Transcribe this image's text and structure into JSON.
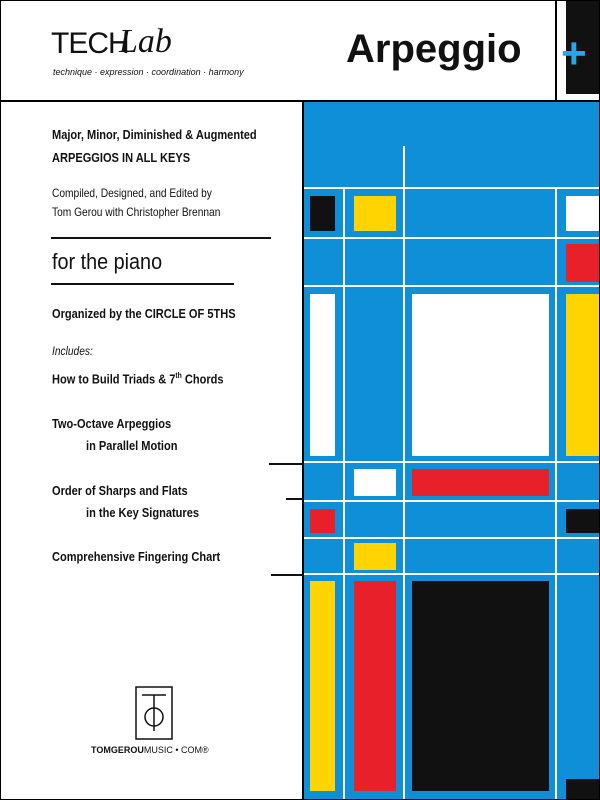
{
  "header": {
    "logo_tech": "TECH",
    "logo_lab": "Lab",
    "tagline": "technique · expression · coordination · harmony",
    "title": "Arpeggio",
    "plus": "+"
  },
  "left": {
    "subtitle": [
      "Major, Minor, Diminished & Augmented",
      "ARPEGGIOS IN ALL KEYS"
    ],
    "credits": [
      "Compiled, Designed, and Edited by",
      "Tom Gerou with Christopher Brennan"
    ],
    "instrument": "for the piano",
    "organized": "Organized by the CIRCLE OF 5THS",
    "includes_label": "Includes:",
    "items": [
      {
        "parts": [
          "How to Build Triads & 7",
          "th",
          " Chords"
        ]
      },
      {
        "lines": [
          "Two-Octave Arpeggios",
          "in Parallel  Motion"
        ]
      },
      {
        "lines": [
          "Order of Sharps and Flats",
          "in the Key Signatures"
        ]
      },
      {
        "lines": [
          "Comprehensive Fingering Chart"
        ]
      }
    ]
  },
  "footer": {
    "publisher_bold": "TOMGEROU",
    "publisher_rest": "MUSIC • COM®"
  }
}
